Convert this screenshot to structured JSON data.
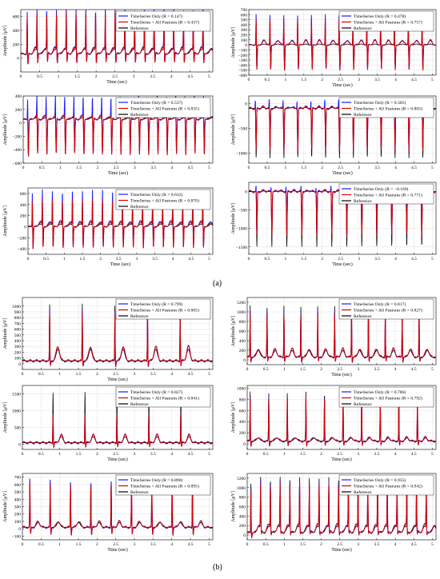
{
  "figure": {
    "part_a_label": "(a)",
    "part_b_label": "(b)"
  },
  "legend_labels": {
    "timeseries_only": "TimeSeries Only",
    "all_features": "TimeSeries + All Features",
    "reference": "Reference"
  },
  "axis_text": {
    "xlabel": "Time (sec)",
    "ylabel": "Amplitude [μV]"
  },
  "colors": {
    "timeseries_only": "#1a1aff",
    "all_features": "#d40000",
    "reference": "#000000"
  },
  "chart_data": [
    {
      "id": "a1",
      "type": "line",
      "xlabel": "Time (sec)",
      "ylabel": "Amplitude [μV]",
      "xlim": [
        0,
        5.1
      ],
      "ylim": [
        -200,
        700
      ],
      "xticks": [
        0,
        0.5,
        1,
        1.5,
        2,
        2.5,
        3,
        3.5,
        4,
        4.5,
        5
      ],
      "yticks": [
        0,
        200,
        400,
        600
      ],
      "legend": [
        "TimeSeries Only (R = 0.147)",
        "TimeSeries + All Features (R = 0.437)",
        "Reference"
      ],
      "waveform": {
        "beats": 19,
        "first_beat": 0.17,
        "peak_ref": 600,
        "trough_ref": -40,
        "peak_blue": 680,
        "peak_red": 620,
        "trough_fit": -100,
        "baseline": 60
      },
      "series": [
        {
          "name": "TimeSeries Only",
          "color": "#1a1aff",
          "r": 0.147
        },
        {
          "name": "TimeSeries + All Features",
          "color": "#d40000",
          "r": 0.437
        },
        {
          "name": "Reference",
          "color": "#000000"
        }
      ]
    },
    {
      "id": "a2",
      "type": "line",
      "xlabel": "Time (sec)",
      "ylabel": "Amplitude [μV]",
      "xlim": [
        0,
        5.1
      ],
      "ylim": [
        -600,
        700
      ],
      "xticks": [
        0,
        0.5,
        1,
        1.5,
        2,
        2.5,
        3,
        3.5,
        4,
        4.5,
        5
      ],
      "yticks": [
        -600,
        -500,
        -400,
        -300,
        -200,
        -100,
        0,
        100,
        200,
        300,
        400,
        500,
        600,
        700
      ],
      "legend": [
        "TimeSeries Only (R = 0.478)",
        "TimeSeries + All Features (R = 0.757)",
        "Reference"
      ],
      "waveform": {
        "beats": 13,
        "first_beat": 0.2,
        "peak_ref": 150,
        "trough_ref": -450,
        "peak_blue": 650,
        "peak_red": 560,
        "trough_fit": -500,
        "baseline": 0
      },
      "series": [
        {
          "name": "TimeSeries Only",
          "color": "#1a1aff",
          "r": 0.478
        },
        {
          "name": "TimeSeries + All Features",
          "color": "#d40000",
          "r": 0.757
        },
        {
          "name": "Reference",
          "color": "#000000"
        }
      ]
    },
    {
      "id": "a3",
      "type": "line",
      "xlabel": "Time (sec)",
      "ylabel": "Amplitude [μV]",
      "xlim": [
        0,
        5.1
      ],
      "ylim": [
        -600,
        400
      ],
      "xticks": [
        0,
        0.5,
        1,
        1.5,
        2,
        2.5,
        3,
        3.5,
        4,
        4.5,
        5
      ],
      "yticks": [
        -600,
        -400,
        -200,
        0,
        200,
        400
      ],
      "legend": [
        "TimeSeries Only (R = 0.537)",
        "TimeSeries + All Features (R = 0.835)",
        "Reference"
      ],
      "waveform": {
        "beats": 20,
        "first_beat": 0.12,
        "peak_ref": 250,
        "trough_ref": -450,
        "peak_blue": 400,
        "peak_red": 320,
        "trough_fit": -500,
        "baseline": 50
      },
      "series": [
        {
          "name": "TimeSeries Only",
          "color": "#1a1aff",
          "r": 0.537
        },
        {
          "name": "TimeSeries + All Features",
          "color": "#d40000",
          "r": 0.835
        },
        {
          "name": "Reference",
          "color": "#000000"
        }
      ]
    },
    {
      "id": "a4",
      "type": "line",
      "xlabel": "Time (sec)",
      "ylabel": "Amplitude [μV]",
      "xlim": [
        0,
        5.1
      ],
      "ylim": [
        -1200,
        150
      ],
      "xticks": [
        0,
        0.5,
        1,
        1.5,
        2,
        2.5,
        3,
        3.5,
        4,
        4.5,
        5
      ],
      "yticks": [
        -1000,
        -500,
        0
      ],
      "legend": [
        "TimeSeries Only (R = 0.305)",
        "TimeSeries + All Features (R = 0.803)",
        "Reference"
      ],
      "waveform": {
        "beats": 13,
        "first_beat": 0.18,
        "peak_ref": 50,
        "trough_ref": -1100,
        "peak_blue": 120,
        "peak_red": 80,
        "trough_fit": -950,
        "baseline": -100
      },
      "series": [
        {
          "name": "TimeSeries Only",
          "color": "#1a1aff",
          "r": 0.305
        },
        {
          "name": "TimeSeries + All Features",
          "color": "#d40000",
          "r": 0.803
        },
        {
          "name": "Reference",
          "color": "#000000"
        }
      ]
    },
    {
      "id": "a5",
      "type": "line",
      "xlabel": "Time (sec)",
      "ylabel": "Amplitude [μV]",
      "xlim": [
        0,
        5.1
      ],
      "ylim": [
        -500,
        700
      ],
      "xticks": [
        0,
        0.5,
        1,
        1.5,
        2,
        2.5,
        3,
        3.5,
        4,
        4.5,
        5
      ],
      "yticks": [
        -400,
        -200,
        0,
        200,
        400,
        600
      ],
      "legend": [
        "TimeSeries Only (R = 0.632)",
        "TimeSeries + All Features (R = 0.870)",
        "Reference"
      ],
      "waveform": {
        "beats": 18,
        "first_beat": 0.12,
        "peak_ref": 400,
        "trough_ref": -300,
        "peak_blue": 650,
        "peak_red": 500,
        "trough_fit": -400,
        "baseline": 0
      },
      "series": [
        {
          "name": "TimeSeries Only",
          "color": "#1a1aff",
          "r": 0.632
        },
        {
          "name": "TimeSeries + All Features",
          "color": "#d40000",
          "r": 0.87
        },
        {
          "name": "Reference",
          "color": "#000000"
        }
      ]
    },
    {
      "id": "a6",
      "type": "line",
      "xlabel": "Time (sec)",
      "ylabel": "Amplitude [μV]",
      "xlim": [
        0,
        5.1
      ],
      "ylim": [
        -1700,
        250
      ],
      "xticks": [
        0,
        0.5,
        1,
        1.5,
        2,
        2.5,
        3,
        3.5,
        4,
        4.5,
        5
      ],
      "yticks": [
        -1500,
        -1000,
        -500,
        0
      ],
      "legend": [
        "TimeSeries Only (R = −0.169)",
        "TimeSeries + All Features (R = 0.771)",
        "Reference"
      ],
      "waveform": {
        "beats": 12,
        "first_beat": 0.2,
        "peak_ref": 150,
        "trough_ref": -1500,
        "peak_blue": 200,
        "peak_red": 100,
        "trough_fit": -1200,
        "baseline": 0
      },
      "series": [
        {
          "name": "TimeSeries Only",
          "color": "#1a1aff",
          "r": -0.169
        },
        {
          "name": "TimeSeries + All Features",
          "color": "#d40000",
          "r": 0.771
        },
        {
          "name": "Reference",
          "color": "#000000"
        }
      ]
    },
    {
      "id": "b1",
      "type": "line",
      "xlabel": "Time (sec)",
      "ylabel": "Amplitude [μV]",
      "xlim": [
        0,
        5.1
      ],
      "ylim": [
        -100,
        1150
      ],
      "xticks": [
        0,
        0.5,
        1,
        1.5,
        2,
        2.5,
        3,
        3.5,
        4,
        4.5,
        5
      ],
      "yticks": [
        0,
        100,
        200,
        300,
        400,
        500,
        600,
        700,
        800,
        900,
        1000
      ],
      "legend": [
        "TimeSeries Only (R = 0.799)",
        "TimeSeries + All Features (R = 0.805)",
        "Reference"
      ],
      "waveform": {
        "beats": 5,
        "first_beat": 0.73,
        "peak_ref": 1050,
        "trough_ref": -20,
        "peak_blue": 950,
        "peak_red": 900,
        "trough_fit": -40,
        "baseline": 50,
        "twave": 300
      },
      "series": [
        {
          "name": "TimeSeries Only",
          "color": "#1a1aff",
          "r": 0.799
        },
        {
          "name": "TimeSeries + All Features",
          "color": "#d40000",
          "r": 0.805
        },
        {
          "name": "Reference",
          "color": "#000000"
        }
      ]
    },
    {
      "id": "b2",
      "type": "line",
      "xlabel": "Time (sec)",
      "ylabel": "Amplitude [μV]",
      "xlim": [
        0,
        5.1
      ],
      "ylim": [
        -100,
        1300
      ],
      "xticks": [
        0,
        0.5,
        1,
        1.5,
        2,
        2.5,
        3,
        3.5,
        4,
        4.5,
        5
      ],
      "yticks": [
        0,
        200,
        400,
        600,
        800,
        1000,
        1200
      ],
      "legend": [
        "TimeSeries Only (R = 0.817)",
        "TimeSeries + All Features (R = 0.827)",
        "Reference"
      ],
      "waveform": {
        "beats": 11,
        "first_beat": 0.08,
        "peak_ref": 1150,
        "trough_ref": -20,
        "peak_blue": 1050,
        "peak_red": 1000,
        "trough_fit": -40,
        "baseline": 60,
        "twave": 230
      },
      "series": [
        {
          "name": "TimeSeries Only",
          "color": "#1a1aff",
          "r": 0.817
        },
        {
          "name": "TimeSeries + All Features",
          "color": "#d40000",
          "r": 0.827
        },
        {
          "name": "Reference",
          "color": "#000000"
        }
      ]
    },
    {
      "id": "b3",
      "type": "line",
      "xlabel": "Time (sec)",
      "ylabel": "Amplitude [μV]",
      "xlim": [
        0,
        5.1
      ],
      "ylim": [
        -150,
        1750
      ],
      "xticks": [
        0,
        0.5,
        1,
        1.5,
        2,
        2.5,
        3,
        3.5,
        4,
        4.5,
        5
      ],
      "yticks": [
        0,
        500,
        1000,
        1500
      ],
      "legend": [
        "TimeSeries Only (R = 0.827)",
        "TimeSeries + All Features (R = 0.841)",
        "Reference"
      ],
      "waveform": {
        "beats": 5,
        "first_beat": 0.82,
        "peak_ref": 1600,
        "trough_ref": -50,
        "peak_blue": 1000,
        "peak_red": 950,
        "trough_fit": -80,
        "baseline": 50,
        "twave": 280
      },
      "series": [
        {
          "name": "TimeSeries Only",
          "color": "#1a1aff",
          "r": 0.827
        },
        {
          "name": "TimeSeries + All Features",
          "color": "#d40000",
          "r": 0.841
        },
        {
          "name": "Reference",
          "color": "#000000"
        }
      ]
    },
    {
      "id": "b4",
      "type": "line",
      "xlabel": "Time (sec)",
      "ylabel": "Amplitude [μV]",
      "xlim": [
        0,
        5.1
      ],
      "ylim": [
        -100,
        1050
      ],
      "xticks": [
        0,
        0.5,
        1,
        1.5,
        2,
        2.5,
        3,
        3.5,
        4,
        4.5,
        5
      ],
      "yticks": [
        0,
        200,
        400,
        600,
        800,
        1000
      ],
      "legend": [
        "TimeSeries Only (R = 0.786)",
        "TimeSeries + All Features (R = 0.792)",
        "Reference"
      ],
      "waveform": {
        "beats": 10,
        "first_beat": 0.08,
        "peak_ref": 950,
        "trough_ref": -20,
        "peak_blue": 880,
        "peak_red": 850,
        "trough_fit": -40,
        "baseline": 50,
        "twave": 120
      },
      "series": [
        {
          "name": "TimeSeries Only",
          "color": "#1a1aff",
          "r": 0.786
        },
        {
          "name": "TimeSeries + All Features",
          "color": "#d40000",
          "r": 0.792
        },
        {
          "name": "Reference",
          "color": "#000000"
        }
      ]
    },
    {
      "id": "b5",
      "type": "line",
      "xlabel": "Time (sec)",
      "ylabel": "Amplitude [μV]",
      "xlim": [
        0,
        5.1
      ],
      "ylim": [
        -150,
        750
      ],
      "xticks": [
        0,
        0.5,
        1,
        1.5,
        2,
        2.5,
        3,
        3.5,
        4,
        4.5,
        5
      ],
      "yticks": [
        -100,
        0,
        100,
        200,
        300,
        400,
        500,
        600,
        700
      ],
      "legend": [
        "TimeSeries Only (R = 0.890)",
        "TimeSeries + All Features (R = 0.895)",
        "Reference"
      ],
      "waveform": {
        "beats": 9,
        "first_beat": 0.2,
        "peak_ref": 680,
        "trough_ref": -40,
        "peak_blue": 700,
        "peak_red": 650,
        "trough_fit": -80,
        "baseline": 20,
        "twave": 100
      },
      "series": [
        {
          "name": "TimeSeries Only",
          "color": "#1a1aff",
          "r": 0.89
        },
        {
          "name": "TimeSeries + All Features",
          "color": "#d40000",
          "r": 0.895
        },
        {
          "name": "Reference",
          "color": "#000000"
        }
      ]
    },
    {
      "id": "b6",
      "type": "line",
      "xlabel": "Time (sec)",
      "ylabel": "Amplitude [μV]",
      "xlim": [
        0,
        5.1
      ],
      "ylim": [
        -100,
        1300
      ],
      "xticks": [
        0,
        0.5,
        1,
        1.5,
        2,
        2.5,
        3,
        3.5,
        4,
        4.5,
        5
      ],
      "yticks": [
        0,
        200,
        400,
        600,
        800,
        1000,
        1200
      ],
      "legend": [
        "TimeSeries Only (R = 0.935)",
        "TimeSeries + All Features (R = 0.942)",
        "Reference"
      ],
      "waveform": {
        "beats": 19,
        "first_beat": 0.1,
        "peak_ref": 1150,
        "trough_ref": -20,
        "peak_blue": 1050,
        "peak_red": 1000,
        "trough_fit": -40,
        "baseline": 50,
        "twave": 220
      },
      "series": [
        {
          "name": "TimeSeries Only",
          "color": "#1a1aff",
          "r": 0.935
        },
        {
          "name": "TimeSeries + All Features",
          "color": "#d40000",
          "r": 0.942
        },
        {
          "name": "Reference",
          "color": "#000000"
        }
      ]
    }
  ]
}
